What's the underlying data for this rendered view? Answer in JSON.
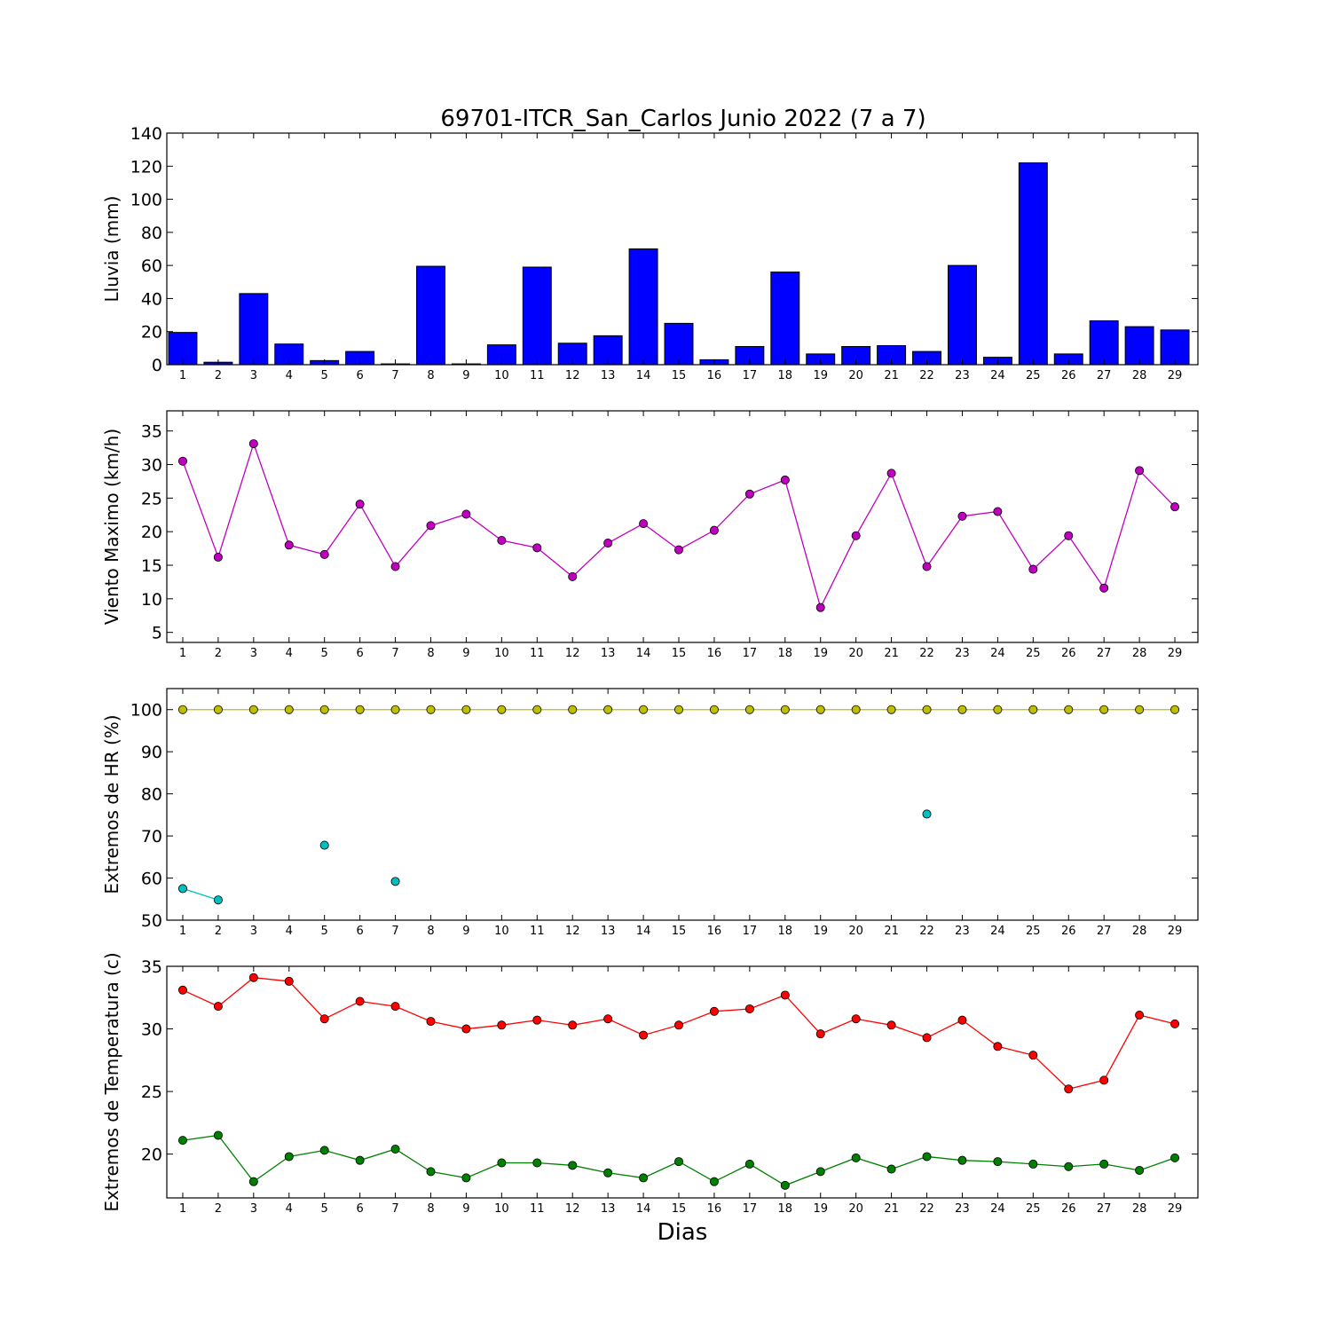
{
  "title": "69701-ITCR_San_Carlos Junio 2022  (7 a 7)",
  "xlabel": "Dias",
  "chart_data": [
    {
      "type": "bar",
      "ylabel": "Lluvia (mm)",
      "ylim": [
        0,
        140
      ],
      "yticks": [
        0,
        20,
        40,
        60,
        80,
        100,
        120,
        140
      ],
      "categories": [
        1,
        2,
        3,
        4,
        5,
        6,
        7,
        8,
        9,
        10,
        11,
        12,
        13,
        14,
        15,
        16,
        17,
        18,
        19,
        20,
        21,
        22,
        23,
        24,
        25,
        26,
        27,
        28,
        29
      ],
      "series": [
        {
          "color": "#0000ff",
          "values": [
            19.5,
            1.5,
            43,
            12.5,
            2.5,
            8,
            0.5,
            59.5,
            0.5,
            12,
            59,
            13,
            17.5,
            70,
            25,
            3,
            11,
            56,
            6.5,
            11,
            11.5,
            8,
            60,
            4.5,
            122,
            6.5,
            26.5,
            23,
            21
          ]
        }
      ]
    },
    {
      "type": "line",
      "ylabel": "Viento Maximo (km/h)",
      "ylim": [
        3.5,
        38
      ],
      "yticks": [
        5,
        10,
        15,
        20,
        25,
        30,
        35
      ],
      "categories": [
        1,
        2,
        3,
        4,
        5,
        6,
        7,
        8,
        9,
        10,
        11,
        12,
        13,
        14,
        15,
        16,
        17,
        18,
        19,
        20,
        21,
        22,
        23,
        24,
        25,
        26,
        27,
        28,
        29
      ],
      "series": [
        {
          "color": "#bf00bf",
          "values": [
            30.5,
            16.2,
            33.1,
            18,
            16.6,
            24.1,
            14.8,
            20.9,
            22.6,
            18.7,
            17.6,
            13.3,
            18.3,
            21.2,
            17.3,
            20.2,
            25.6,
            27.7,
            8.7,
            19.4,
            28.7,
            14.8,
            22.3,
            23,
            14.4,
            19.4,
            11.6,
            29.1,
            23.7
          ]
        }
      ]
    },
    {
      "type": "line",
      "ylabel": "Extremos de HR (%)",
      "ylim": [
        50,
        105
      ],
      "yticks": [
        50,
        60,
        70,
        80,
        90,
        100
      ],
      "categories": [
        1,
        2,
        3,
        4,
        5,
        6,
        7,
        8,
        9,
        10,
        11,
        12,
        13,
        14,
        15,
        16,
        17,
        18,
        19,
        20,
        21,
        22,
        23,
        24,
        25,
        26,
        27,
        28,
        29
      ],
      "series": [
        {
          "color": "#bfbf00",
          "values": [
            100,
            100,
            100,
            100,
            100,
            100,
            100,
            100,
            100,
            100,
            100,
            100,
            100,
            100,
            100,
            100,
            100,
            100,
            100,
            100,
            100,
            100,
            100,
            100,
            100,
            100,
            100,
            100,
            100
          ]
        },
        {
          "color": "#00bfbf",
          "values": [
            57.5,
            54.8,
            null,
            null,
            67.8,
            null,
            59.2,
            null,
            null,
            null,
            null,
            null,
            null,
            null,
            null,
            null,
            null,
            null,
            null,
            null,
            null,
            75.2,
            null,
            null,
            null,
            null,
            null,
            null,
            null
          ]
        }
      ]
    },
    {
      "type": "line",
      "ylabel": "Extremos de Temperatura (c)",
      "ylim": [
        16.5,
        35
      ],
      "yticks": [
        20,
        25,
        30,
        35
      ],
      "categories": [
        1,
        2,
        3,
        4,
        5,
        6,
        7,
        8,
        9,
        10,
        11,
        12,
        13,
        14,
        15,
        16,
        17,
        18,
        19,
        20,
        21,
        22,
        23,
        24,
        25,
        26,
        27,
        28,
        29
      ],
      "series": [
        {
          "color": "#ff0000",
          "values": [
            33.1,
            31.8,
            34.1,
            33.8,
            30.8,
            32.2,
            31.8,
            30.6,
            30,
            30.3,
            30.7,
            30.3,
            30.8,
            29.5,
            30.3,
            31.4,
            31.6,
            32.7,
            29.6,
            30.8,
            30.3,
            29.3,
            30.7,
            28.6,
            27.9,
            25.2,
            25.9,
            31.1,
            30.4
          ]
        },
        {
          "color": "#008000",
          "values": [
            21.1,
            21.5,
            17.8,
            19.8,
            20.3,
            19.5,
            20.4,
            18.6,
            18.1,
            19.3,
            19.3,
            19.1,
            18.5,
            18.1,
            19.4,
            17.8,
            19.2,
            17.5,
            18.6,
            19.7,
            18.8,
            19.8,
            19.5,
            19.4,
            19.2,
            19,
            19.2,
            18.7,
            19.7
          ]
        }
      ]
    }
  ]
}
